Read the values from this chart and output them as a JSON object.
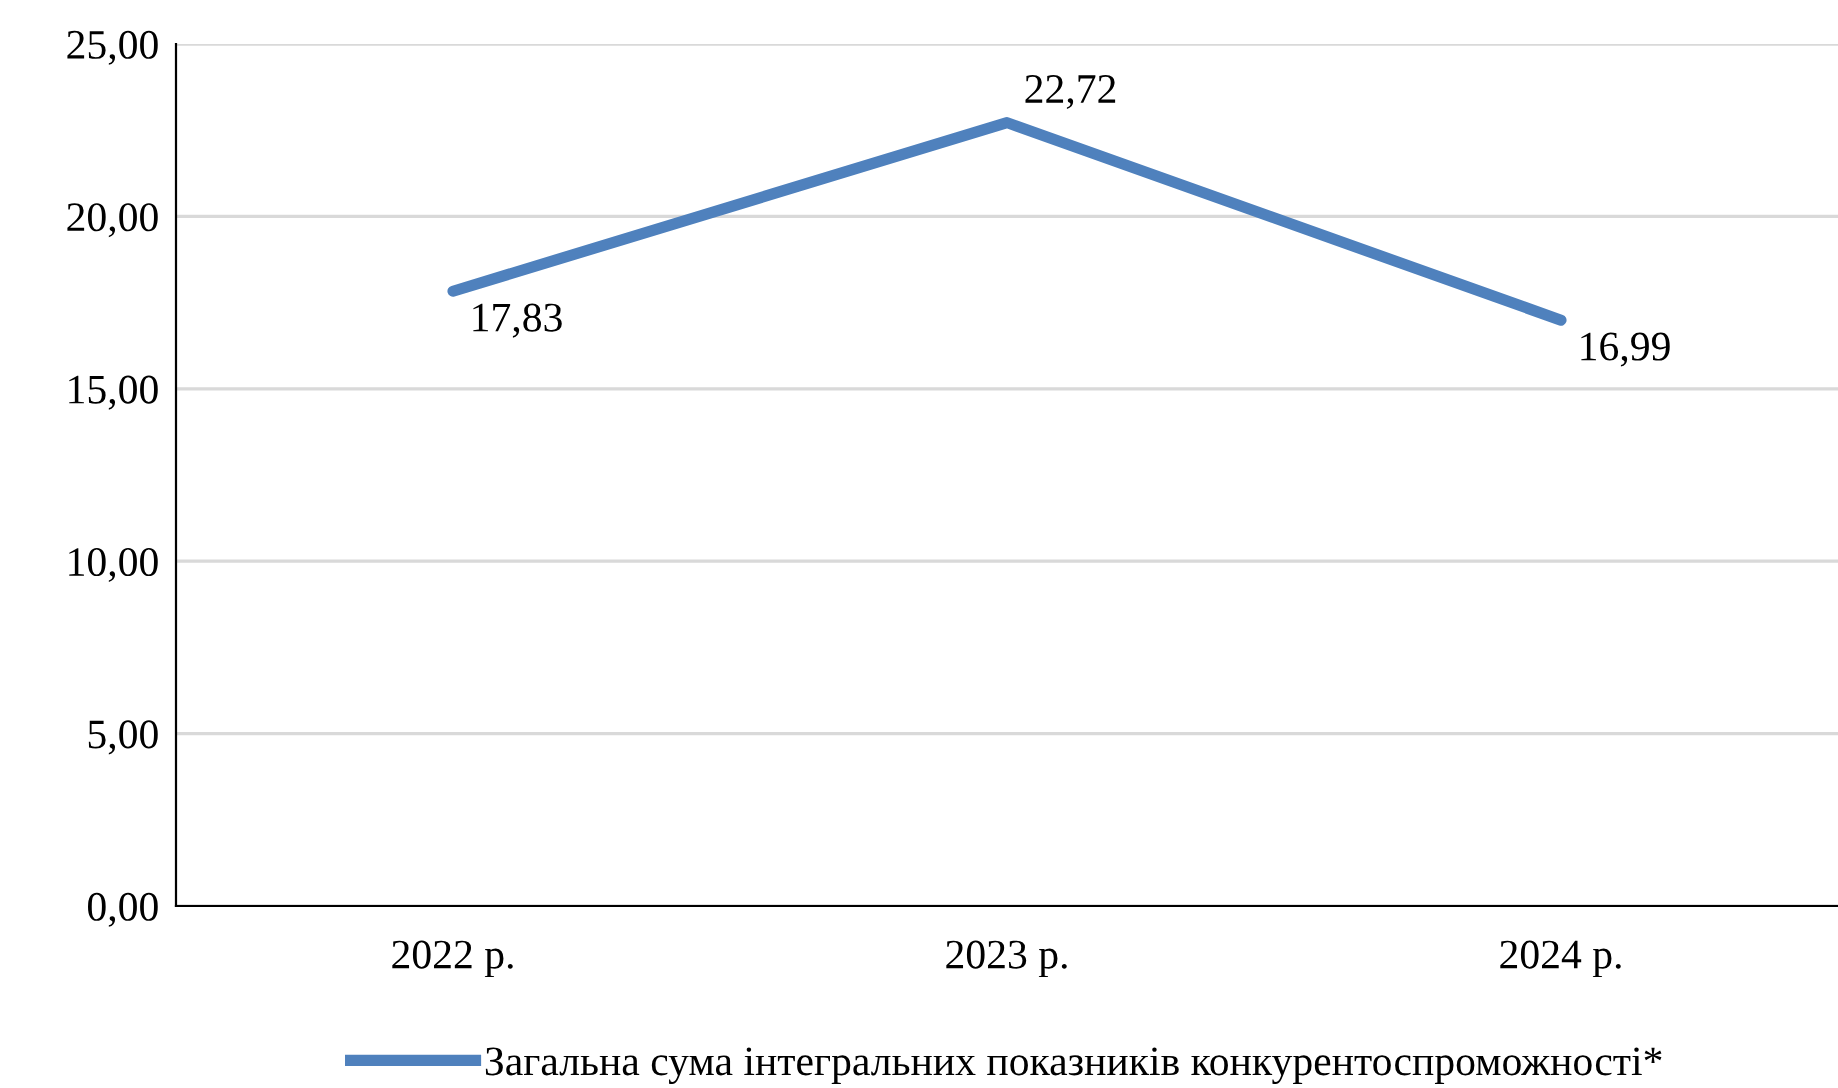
{
  "chart_data": {
    "type": "line",
    "categories": [
      "2022 р.",
      "2023 р.",
      "2024 р."
    ],
    "series": [
      {
        "name": "Загальна сума інтегральних показників конкурентоспроможності*",
        "color": "#4f81bd",
        "values": [
          17.83,
          22.72,
          16.99
        ],
        "value_labels": [
          "17,83",
          "22,72",
          "16,99"
        ]
      }
    ],
    "ylim": [
      0,
      25
    ],
    "yticks": [
      {
        "value": 0,
        "label": "0,00"
      },
      {
        "value": 5,
        "label": "5,00"
      },
      {
        "value": 10,
        "label": "10,00"
      },
      {
        "value": 15,
        "label": "15,00"
      },
      {
        "value": 20,
        "label": "20,00"
      },
      {
        "value": 25,
        "label": "25,00"
      }
    ],
    "grid": "y",
    "legend": "bottom",
    "marker": "none",
    "line_style": "solid"
  }
}
